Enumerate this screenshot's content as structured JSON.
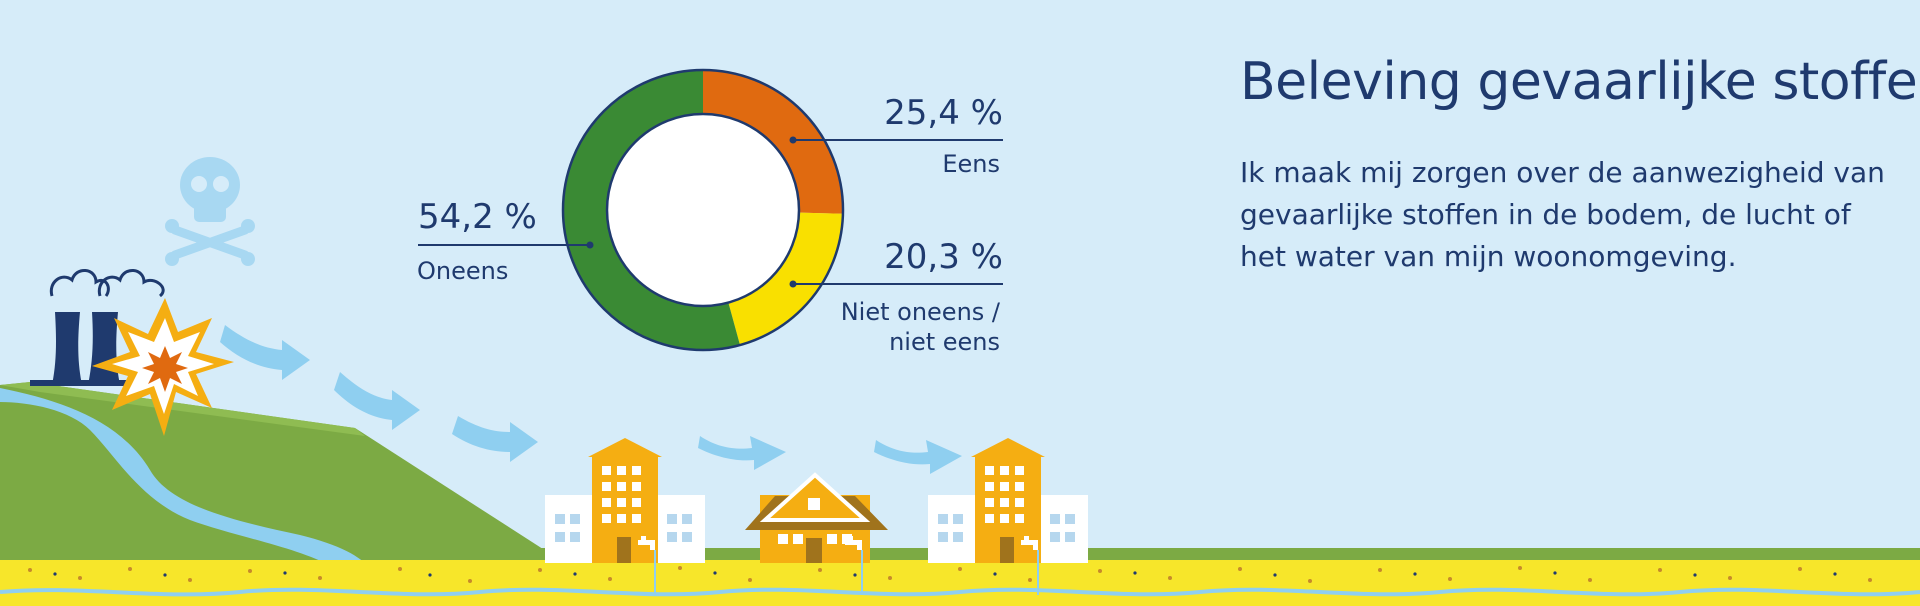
{
  "heading": "Beleving gevaarlijke stoffen",
  "description": "Ik maak mij zorgen over de aanwezigheid van gevaarlijke stoffen in de bodem, de lucht of het water van mijn woonomgeving.",
  "chart_data": {
    "type": "pie",
    "variant": "donut",
    "unit": "%",
    "slices": [
      {
        "label": "Eens",
        "value": 25.4,
        "display": "25,4 %",
        "color": "#e06a10"
      },
      {
        "label": "Niet oneens / niet eens",
        "label_lines": [
          "Niet oneens /",
          "niet eens"
        ],
        "value": 20.3,
        "display": "20,3 %",
        "color": "#f9e000"
      },
      {
        "label": "Oneens",
        "value": 54.2,
        "display": "54,2 %",
        "color": "#3a8a34"
      }
    ]
  },
  "colors": {
    "background": "#d6ecf9",
    "text": "#1f3a6e",
    "hill": "#7caa44",
    "river": "#8fcff0",
    "soil": "#f7e62a",
    "building": "#f5ae12"
  },
  "icons": [
    "skull-crossbones-icon",
    "explosion-icon",
    "factory-cooling-towers-icon",
    "flow-arrow-icon",
    "water-tap-icon"
  ]
}
